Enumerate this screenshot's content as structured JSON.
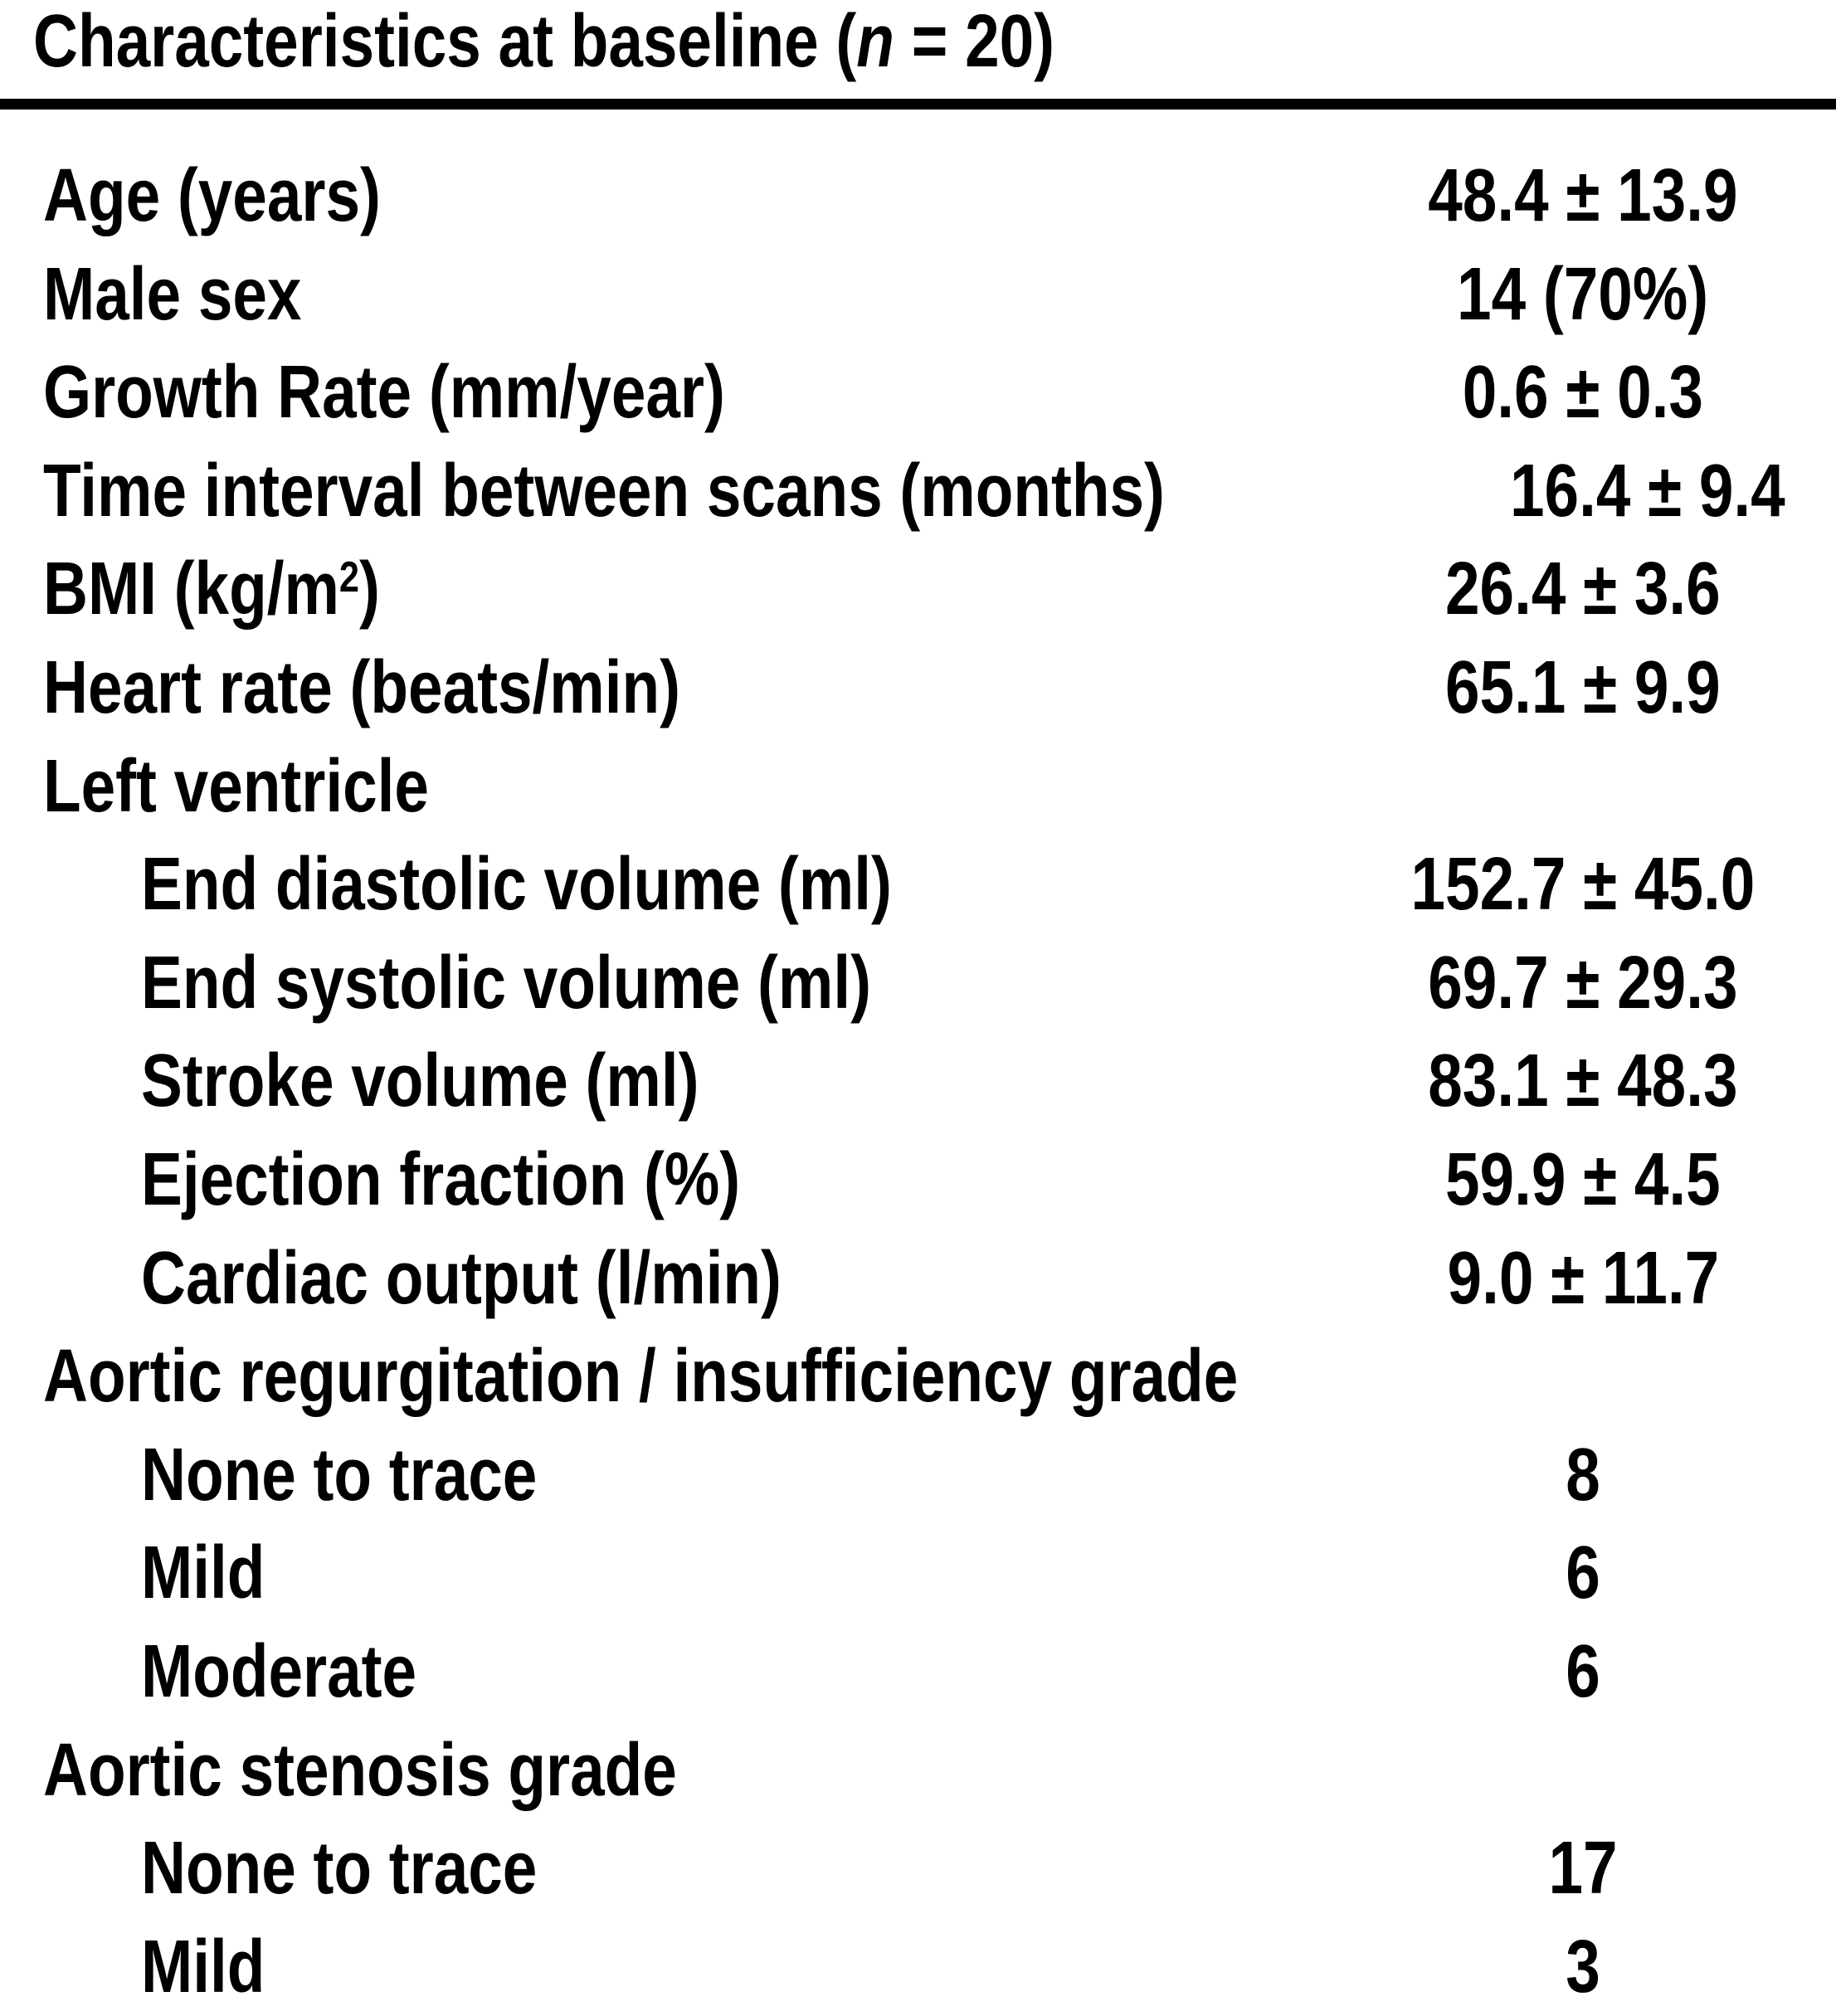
{
  "table": {
    "title": {
      "prefix": "Characteristics at baseline (",
      "n_symbol": "n",
      "suffix": " = 20)"
    },
    "rows": [
      {
        "indent": 0,
        "label": "Age (years)",
        "value": "48.4 ± 13.9"
      },
      {
        "indent": 0,
        "label": "Male sex",
        "value": "14 (70%)"
      },
      {
        "indent": 0,
        "label": "Growth Rate (mm/year)",
        "value": "0.6 ± 0.3"
      },
      {
        "indent": 0,
        "label": "Time interval between scans (months)",
        "value": "16.4 ± 9.4"
      },
      {
        "indent": 0,
        "label": "BMI (kg/m",
        "label_sup": "2",
        "label_end": ")",
        "value": "26.4 ± 3.6"
      },
      {
        "indent": 0,
        "label": "Heart rate (beats/min)",
        "value": "65.1 ± 9.9"
      },
      {
        "indent": 0,
        "label": "Left ventricle",
        "value": ""
      },
      {
        "indent": 1,
        "label": "End diastolic volume (ml)",
        "value": "152.7 ± 45.0"
      },
      {
        "indent": 1,
        "label": "End systolic volume (ml)",
        "value": "69.7 ± 29.3"
      },
      {
        "indent": 1,
        "label": "Stroke volume (ml)",
        "value": "83.1 ± 48.3"
      },
      {
        "indent": 1,
        "label": "Ejection fraction (%)",
        "value": "59.9 ± 4.5"
      },
      {
        "indent": 1,
        "label": "Cardiac output (l/min)",
        "value": "9.0 ± 11.7"
      },
      {
        "indent": 0,
        "label": "Aortic regurgitation / insufficiency grade",
        "value": ""
      },
      {
        "indent": 1,
        "label": "None to trace",
        "value": "8"
      },
      {
        "indent": 1,
        "label": "Mild",
        "value": "6"
      },
      {
        "indent": 1,
        "label": "Moderate",
        "value": "6"
      },
      {
        "indent": 0,
        "label": "Aortic stenosis grade",
        "value": ""
      },
      {
        "indent": 1,
        "label": "None to trace",
        "value": "17"
      },
      {
        "indent": 1,
        "label": "Mild",
        "value": "3"
      }
    ],
    "colors": {
      "text": "#000000",
      "background": "#ffffff",
      "rule": "#000000"
    }
  }
}
